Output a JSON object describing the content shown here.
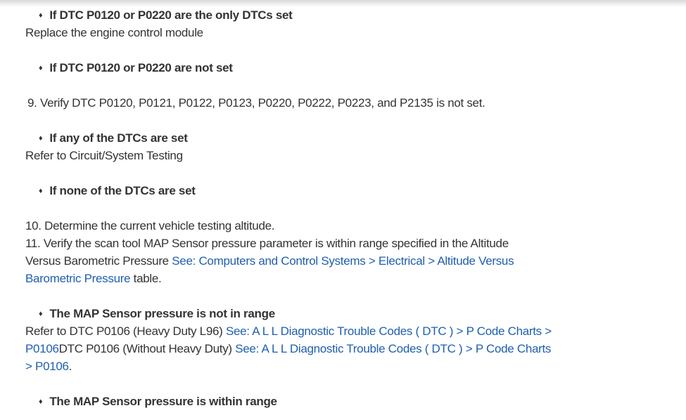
{
  "bullet_icon": "diamond",
  "link_color": "#1f5fae",
  "blocks": {
    "b1": "If DTC P0120 or P0220 are the only DTCs set",
    "t1": "Replace the engine control module",
    "b2": "If DTC P0120 or P0220 are not set",
    "s9": "9. Verify DTC P0120, P0121, P0122, P0123, P0220, P0222, P0223, and P2135 is not set.",
    "b3": "If any of the DTCs are set",
    "t3": "Refer to Circuit/System Testing",
    "b4": "If none of the DTCs are set",
    "s10": "10. Determine the current vehicle testing altitude.",
    "s11_a": "11. Verify the scan tool MAP Sensor pressure parameter is within range specified in the Altitude",
    "s11_b": "Versus Barometric Pressure ",
    "s11_link1": "See: Computers and Control Systems > Electrical > Altitude Versus",
    "s11_link2": "Barometric Pressure",
    "s11_c": " table.",
    "b5": "The MAP Sensor pressure is not in range",
    "t5_a": "Refer to DTC P0106 (Heavy Duty L96) ",
    "t5_link1": "See: A L L Diagnostic Trouble Codes ( DTC ) > P Code Charts >",
    "t5_link1b": "P0106",
    "t5_b": "DTC P0106 (Without Heavy Duty) ",
    "t5_link2": "See: A L L Diagnostic Trouble Codes ( DTC ) > P Code Charts",
    "t5_link2b": "> P0106",
    "t5_c": ".",
    "b6": "The MAP Sensor pressure is within range"
  }
}
